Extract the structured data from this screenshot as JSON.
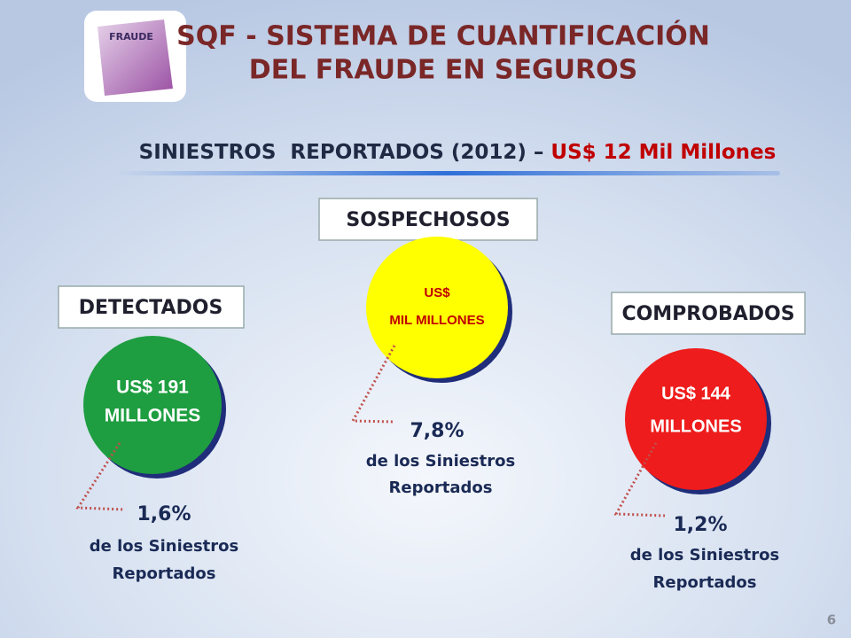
{
  "header": {
    "title_lines": [
      "SQF - SISTEMA DE CUANTIFICACIÓN",
      "DEL FRAUDE EN SEGUROS"
    ],
    "logo_text": "FRAUDE"
  },
  "subtitle": {
    "text": "SINIESTROS  REPORTADOS (2012) – ",
    "highlight": "US$ 12 Mil Millones"
  },
  "groups": [
    {
      "label": "DETECTADOS",
      "circle_lines": [
        "US$ 191",
        "MILLONES"
      ],
      "percent": "1,6%",
      "description_lines": [
        "de los Siniestros",
        "Reportados"
      ]
    },
    {
      "label": "SOSPECHOSOS",
      "circle_lines": [
        "US$",
        "MIL MILLONES"
      ],
      "percent": "7,8%",
      "description_lines": [
        "de los Siniestros",
        "Reportados"
      ]
    },
    {
      "label": "COMPROBADOS",
      "circle_lines": [
        "US$ 144",
        "MILLONES"
      ],
      "percent": "1,2%",
      "description_lines": [
        "de los Siniestros",
        "Reportados"
      ]
    }
  ],
  "page_number": "6"
}
